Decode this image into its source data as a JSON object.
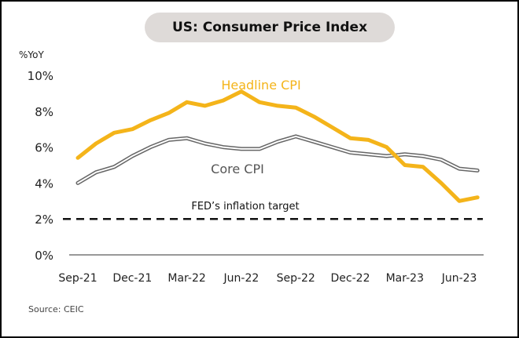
{
  "chart_data": {
    "type": "line",
    "title": "US: Consumer Price Index",
    "ylabel": "%YoY",
    "xlabel": "",
    "ylim": [
      0,
      10
    ],
    "yticks": [
      0,
      2,
      4,
      6,
      8,
      10
    ],
    "ytick_labels": [
      "0%",
      "2%",
      "4%",
      "6%",
      "8%",
      "10%"
    ],
    "x": [
      "Sep-21",
      "Oct-21",
      "Nov-21",
      "Dec-21",
      "Jan-22",
      "Feb-22",
      "Mar-22",
      "Apr-22",
      "May-22",
      "Jun-22",
      "Jul-22",
      "Aug-22",
      "Sep-22",
      "Oct-22",
      "Nov-22",
      "Dec-22",
      "Jan-23",
      "Feb-23",
      "Mar-23",
      "Apr-23",
      "May-23",
      "Jun-23",
      "Jul-23"
    ],
    "xtick_labels": [
      "Sep-21",
      "Dec-21",
      "Mar-22",
      "Jun-22",
      "Sep-22",
      "Dec-22",
      "Mar-23",
      "Jun-23"
    ],
    "xtick_indices": [
      0,
      3,
      6,
      9,
      12,
      15,
      18,
      21
    ],
    "grid": false,
    "series": [
      {
        "name": "Headline CPI",
        "color": "#f4b41a",
        "values": [
          5.4,
          6.2,
          6.8,
          7.0,
          7.5,
          7.9,
          8.5,
          8.3,
          8.6,
          9.1,
          8.5,
          8.3,
          8.2,
          7.7,
          7.1,
          6.5,
          6.4,
          6.0,
          5.0,
          4.9,
          4.0,
          3.0,
          3.2
        ]
      },
      {
        "name": "Core CPI",
        "color": "#666666",
        "values": [
          4.0,
          4.6,
          4.9,
          5.5,
          6.0,
          6.4,
          6.5,
          6.2,
          6.0,
          5.9,
          5.9,
          6.3,
          6.6,
          6.3,
          6.0,
          5.7,
          5.6,
          5.5,
          5.6,
          5.5,
          5.3,
          4.8,
          4.7
        ]
      }
    ],
    "reference_line": {
      "label": "FED’s inflation target",
      "value": 2,
      "style": "dashed"
    },
    "source": "Source: CEIC"
  }
}
